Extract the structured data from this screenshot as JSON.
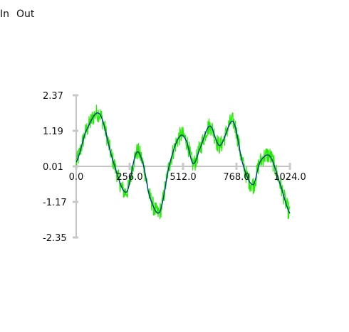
{
  "tabs": [
    "In",
    "Out"
  ],
  "colors": {
    "noisy": "#22ee00",
    "smooth": "#003c8c",
    "axis": "#888888",
    "tick": "#c8c8c8",
    "text": "#111111"
  },
  "chart_data": {
    "type": "line",
    "xlim": [
      0,
      1024
    ],
    "ylim": [
      -2.35,
      2.37
    ],
    "xticks": [
      0,
      256,
      512,
      768,
      1024
    ],
    "xtick_labels": [
      "0.0",
      "256.0",
      "512.0",
      "768.0",
      "1024.0"
    ],
    "yticks": [
      2.37,
      1.19,
      0.01,
      -1.17,
      -2.35
    ],
    "ytick_labels": [
      "2.37",
      "1.19",
      "0.01",
      "-1.17",
      "-2.35"
    ],
    "series": [
      {
        "color": "#22ee00",
        "x": [
          0,
          48,
          112,
          176,
          240,
          288,
          320,
          352,
          400,
          448,
          496,
          528,
          560,
          592,
          640,
          688,
          752,
          800,
          848,
          880,
          928,
          976,
          1024
        ],
        "y": [
          0.15,
          1.2,
          1.75,
          0.2,
          -0.85,
          0.45,
          0.1,
          -1.0,
          -1.5,
          0.1,
          1.0,
          0.85,
          0.1,
          0.6,
          1.35,
          0.7,
          1.5,
          0.05,
          -0.6,
          0.15,
          0.35,
          -0.55,
          -1.55
        ],
        "noise": 0.3
      },
      {
        "color": "#003c8c",
        "x": [
          0,
          48,
          112,
          176,
          240,
          288,
          320,
          352,
          400,
          448,
          496,
          528,
          560,
          592,
          640,
          688,
          752,
          800,
          848,
          880,
          928,
          976,
          1024
        ],
        "y": [
          0.15,
          1.2,
          1.75,
          0.2,
          -0.85,
          0.45,
          0.1,
          -1.0,
          -1.5,
          0.1,
          1.0,
          0.85,
          0.1,
          0.6,
          1.35,
          0.7,
          1.5,
          0.05,
          -0.6,
          0.15,
          0.35,
          -0.55,
          -1.55
        ]
      }
    ]
  }
}
